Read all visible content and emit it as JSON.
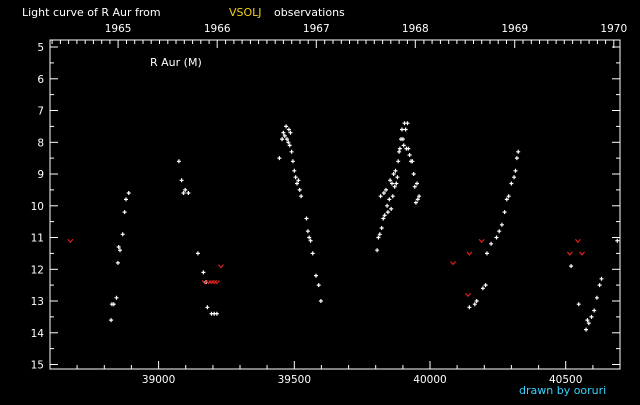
{
  "title": {
    "prefix": "Light curve of R Aur from",
    "source": "VSOLJ",
    "suffix": "observations"
  },
  "credit": "drawn by ooruri",
  "colors": {
    "background": "#000000",
    "axes": "#ffffff",
    "observation": "#ffffff",
    "fainter_than": "#e02020",
    "title_accent": "#f2d21b",
    "credit": "#34d3ff"
  },
  "chart_data": {
    "type": "scatter",
    "title": "Light curve of R Aur from VSOLJ observations",
    "series_label": "R Aur (M)",
    "xlim": [
      38600,
      40700
    ],
    "ylim": [
      15,
      5
    ],
    "y_inverted": true,
    "x_ticks": [
      39000,
      39500,
      40000,
      40500
    ],
    "x_tick_labels": [
      "39000",
      "39500",
      "40000",
      "40500"
    ],
    "y_ticks": [
      5,
      6,
      7,
      8,
      9,
      10,
      11,
      12,
      13,
      14,
      15
    ],
    "y_tick_labels": [
      "5",
      "6",
      "7",
      "8",
      "9",
      "10",
      "11",
      "12",
      "13",
      "14",
      "15"
    ],
    "top_axis": {
      "years": [
        "1965",
        "1966",
        "1967",
        "1968",
        "1969",
        "1970"
      ],
      "year_positions": [
        38851,
        39216,
        39581,
        39946,
        40312,
        40677
      ]
    },
    "series": [
      {
        "kind": "observation",
        "points": [
          [
            38825,
            13.6
          ],
          [
            38828,
            13.1
          ],
          [
            38835,
            13.1
          ],
          [
            38845,
            12.9
          ],
          [
            38850,
            11.8
          ],
          [
            38853,
            11.3
          ],
          [
            38858,
            11.4
          ],
          [
            38868,
            10.9
          ],
          [
            38875,
            10.2
          ],
          [
            38880,
            9.8
          ],
          [
            38890,
            9.6
          ],
          [
            39075,
            8.6
          ],
          [
            39085,
            9.2
          ],
          [
            39092,
            9.6
          ],
          [
            39098,
            9.5
          ],
          [
            39110,
            9.6
          ],
          [
            39145,
            11.5
          ],
          [
            39165,
            12.1
          ],
          [
            39175,
            12.4
          ],
          [
            39180,
            13.2
          ],
          [
            39195,
            13.4
          ],
          [
            39205,
            13.4
          ],
          [
            39215,
            13.4
          ],
          [
            39445,
            8.5
          ],
          [
            39455,
            7.9
          ],
          [
            39460,
            7.7
          ],
          [
            39465,
            7.8
          ],
          [
            39470,
            7.5
          ],
          [
            39473,
            7.9
          ],
          [
            39478,
            8.0
          ],
          [
            39480,
            7.6
          ],
          [
            39483,
            8.1
          ],
          [
            39486,
            7.7
          ],
          [
            39490,
            8.3
          ],
          [
            39495,
            8.6
          ],
          [
            39500,
            8.9
          ],
          [
            39505,
            9.1
          ],
          [
            39510,
            9.3
          ],
          [
            39515,
            9.2
          ],
          [
            39520,
            9.5
          ],
          [
            39525,
            9.7
          ],
          [
            39545,
            10.4
          ],
          [
            39550,
            10.8
          ],
          [
            39555,
            11.0
          ],
          [
            39560,
            11.1
          ],
          [
            39568,
            11.5
          ],
          [
            39580,
            12.2
          ],
          [
            39590,
            12.5
          ],
          [
            39598,
            13.0
          ],
          [
            39805,
            11.4
          ],
          [
            39810,
            11.0
          ],
          [
            39815,
            10.9
          ],
          [
            39818,
            9.7
          ],
          [
            39822,
            10.7
          ],
          [
            39828,
            10.4
          ],
          [
            39830,
            9.6
          ],
          [
            39833,
            10.3
          ],
          [
            39838,
            9.5
          ],
          [
            39842,
            10.0
          ],
          [
            39845,
            10.2
          ],
          [
            39850,
            9.8
          ],
          [
            39853,
            9.2
          ],
          [
            39857,
            10.1
          ],
          [
            39860,
            9.3
          ],
          [
            39863,
            9.7
          ],
          [
            39866,
            9.0
          ],
          [
            39870,
            9.4
          ],
          [
            39873,
            8.9
          ],
          [
            39876,
            9.3
          ],
          [
            39880,
            9.1
          ],
          [
            39883,
            8.6
          ],
          [
            39886,
            8.3
          ],
          [
            39889,
            8.2
          ],
          [
            39893,
            7.9
          ],
          [
            39897,
            7.6
          ],
          [
            39900,
            7.9
          ],
          [
            39903,
            8.1
          ],
          [
            39906,
            7.4
          ],
          [
            39910,
            7.6
          ],
          [
            39913,
            8.2
          ],
          [
            39917,
            7.4
          ],
          [
            39920,
            8.2
          ],
          [
            39925,
            8.4
          ],
          [
            39930,
            8.6
          ],
          [
            39935,
            8.6
          ],
          [
            39940,
            9.0
          ],
          [
            39944,
            9.4
          ],
          [
            39948,
            9.9
          ],
          [
            39952,
            9.3
          ],
          [
            39955,
            9.8
          ],
          [
            39960,
            9.7
          ],
          [
            40145,
            13.2
          ],
          [
            40165,
            13.1
          ],
          [
            40172,
            13.0
          ],
          [
            40195,
            12.6
          ],
          [
            40205,
            12.5
          ],
          [
            40210,
            11.5
          ],
          [
            40225,
            11.2
          ],
          [
            40245,
            11.0
          ],
          [
            40255,
            10.8
          ],
          [
            40265,
            10.6
          ],
          [
            40275,
            10.2
          ],
          [
            40283,
            9.8
          ],
          [
            40290,
            9.7
          ],
          [
            40300,
            9.3
          ],
          [
            40310,
            9.1
          ],
          [
            40315,
            8.9
          ],
          [
            40320,
            8.5
          ],
          [
            40325,
            8.3
          ],
          [
            40520,
            11.9
          ],
          [
            40548,
            13.1
          ],
          [
            40575,
            13.9
          ],
          [
            40580,
            13.6
          ],
          [
            40585,
            13.7
          ],
          [
            40595,
            13.5
          ],
          [
            40605,
            13.3
          ],
          [
            40615,
            12.9
          ],
          [
            40625,
            12.5
          ],
          [
            40632,
            12.3
          ],
          [
            40690,
            11.1
          ]
        ]
      },
      {
        "kind": "fainter_than",
        "points": [
          [
            38675,
            11.1
          ],
          [
            39170,
            12.4
          ],
          [
            39185,
            12.4
          ],
          [
            39195,
            12.4
          ],
          [
            39205,
            12.4
          ],
          [
            39215,
            12.4
          ],
          [
            39230,
            11.9
          ],
          [
            40085,
            11.8
          ],
          [
            40140,
            12.8
          ],
          [
            40145,
            11.5
          ],
          [
            40190,
            11.1
          ],
          [
            40515,
            11.5
          ],
          [
            40545,
            11.1
          ],
          [
            40560,
            11.5
          ]
        ]
      }
    ]
  }
}
